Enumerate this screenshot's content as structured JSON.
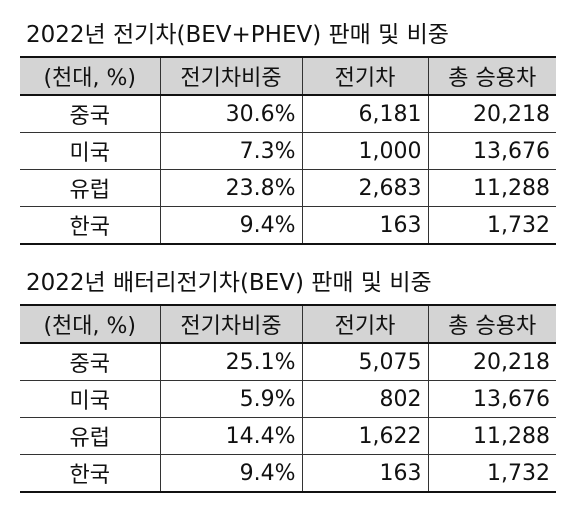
{
  "tables": [
    {
      "title": "2022년 전기차(BEV+PHEV) 판매 및 비중",
      "headers": [
        "(천대, %)",
        "전기차비중",
        "전기차",
        "총 승용차"
      ],
      "rows": [
        [
          "중국",
          "30.6%",
          "6,181",
          "20,218"
        ],
        [
          "미국",
          "7.3%",
          "1,000",
          "13,676"
        ],
        [
          "유럽",
          "23.8%",
          "2,683",
          "11,288"
        ],
        [
          "한국",
          "9.4%",
          "163",
          "1,732"
        ]
      ]
    },
    {
      "title": "2022년 배터리전기차(BEV) 판매 및 비중",
      "headers": [
        "(천대, %)",
        "전기차비중",
        "전기차",
        "총 승용차"
      ],
      "rows": [
        [
          "중국",
          "25.1%",
          "5,075",
          "20,218"
        ],
        [
          "미국",
          "5.9%",
          "802",
          "13,676"
        ],
        [
          "유럽",
          "14.4%",
          "1,622",
          "11,288"
        ],
        [
          "한국",
          "9.4%",
          "163",
          "1,732"
        ]
      ]
    }
  ]
}
